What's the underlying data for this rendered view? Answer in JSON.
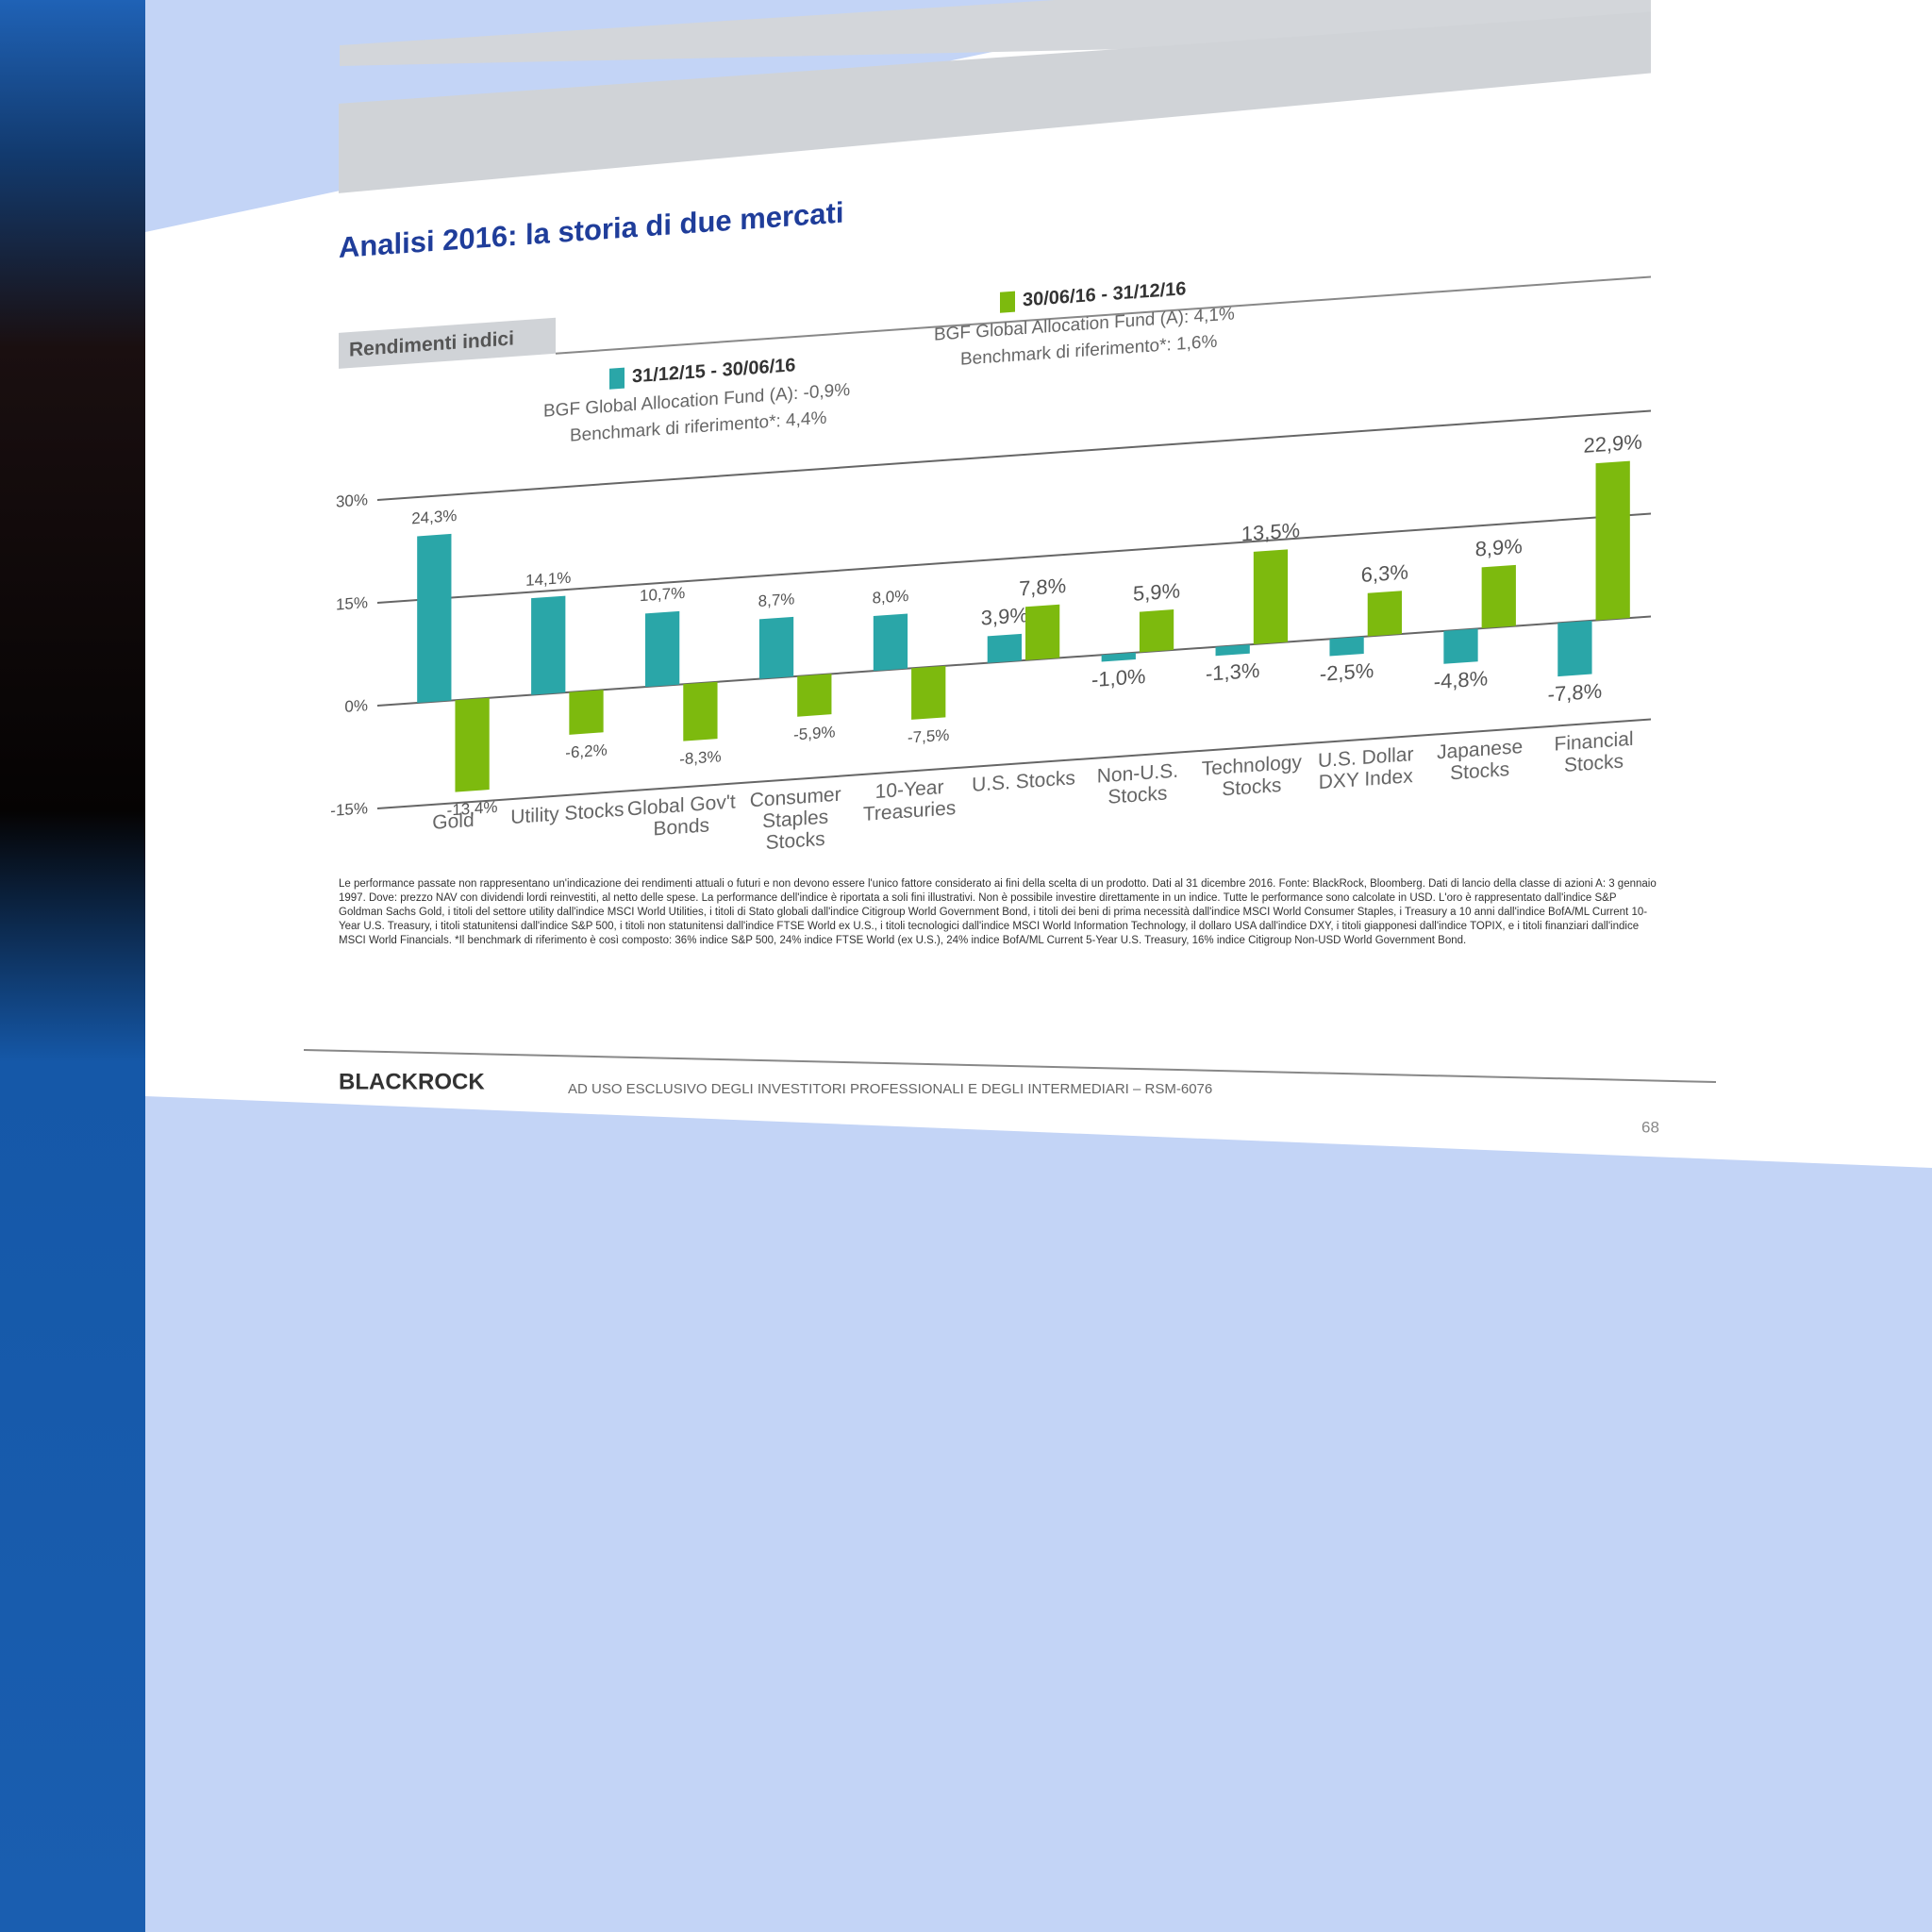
{
  "chart_data": {
    "type": "bar",
    "title": "Analisi 2016: la storia di due mercati",
    "subtitle": "Rendimenti indici",
    "annotations": [
      "BGF Global Allocation Fund (A): -0,9%",
      "Benchmark di riferimento*: 4,4%",
      "BGF Global Allocation Fund (A): 4,1%",
      "Benchmark di riferimento*: 1,6%"
    ],
    "categories": [
      "Gold",
      "Utility Stocks",
      "Global Gov't Bonds",
      "Consumer Staples Stocks",
      "10-Year Treasuries",
      "U.S. Stocks",
      "Non-U.S. Stocks",
      "Technology Stocks",
      "U.S. Dollar DXY Index",
      "Japanese Stocks",
      "Financial Stocks"
    ],
    "series": [
      {
        "name": "31/12/15 - 30/06/16",
        "color": "#2aa6a8",
        "values": [
          24.3,
          14.1,
          10.7,
          8.7,
          8.0,
          3.9,
          -1.0,
          -1.3,
          -2.5,
          -4.8,
          -7.8
        ],
        "value_labels": [
          "24,3%",
          "14,1%",
          "10,7%",
          "8,7%",
          "8,0%",
          "3,9%",
          "-1,0%",
          "-1,3%",
          "-2,5%",
          "-4,8%",
          "-7,8%"
        ]
      },
      {
        "name": "30/06/16 - 31/12/16",
        "color": "#7dba0e",
        "values": [
          -13.4,
          -6.2,
          -8.3,
          -5.9,
          -7.5,
          7.8,
          5.9,
          13.5,
          6.3,
          8.9,
          22.9
        ],
        "value_labels": [
          "-13,4%",
          "-6,2%",
          "-8,3%",
          "-5,9%",
          "-7,5%",
          "7,8%",
          "5,9%",
          "13,5%",
          "6,3%",
          "8,9%",
          "22,9%"
        ]
      }
    ],
    "ylim": [
      -15,
      30
    ],
    "yticks": [
      {
        "value": -15,
        "label": "-15%"
      },
      {
        "value": 0,
        "label": "0%"
      },
      {
        "value": 15,
        "label": "15%"
      },
      {
        "value": 30,
        "label": "30%"
      }
    ],
    "grid": true,
    "footnote": "Le performance passate non rappresentano un'indicazione dei rendimenti attuali o futuri e non devono essere l'unico fattore considerato ai fini della scelta di un prodotto. Dati al 31 dicembre 2016. Fonte: BlackRock, Bloomberg. Dati di lancio della classe di azioni A: 3 gennaio 1997. Dove: prezzo NAV con dividendi lordi reinvestiti, al netto delle spese. La performance dell'indice è riportata a soli fini illustrativi. Non è possibile investire direttamente in un indice. Tutte le performance sono calcolate in USD. L'oro è rappresentato dall'indice S&P Goldman Sachs Gold, i titoli del settore utility dall'indice MSCI World Utilities, i titoli di Stato globali dall'indice Citigroup World Government Bond, i titoli dei beni di prima necessità dall'indice MSCI World Consumer Staples, i Treasury a 10 anni dall'indice BofA/ML Current 10-Year U.S. Treasury, i titoli statunitensi dall'indice S&P 500, i titoli non statunitensi dall'indice FTSE World ex U.S., i titoli tecnologici dall'indice MSCI World Information Technology, il dollaro USA dall'indice DXY, i titoli giapponesi dall'indice TOPIX, e i titoli finanziari dall'indice MSCI World Financials. *Il benchmark di riferimento è così composto: 36% indice S&P 500, 24% indice FTSE World (ex U.S.), 24% indice BofA/ML Current 5-Year U.S. Treasury, 16% indice Citigroup Non-USD World Government Bond.",
    "brand": "BLACKROCK",
    "footer": "AD USO ESCLUSIVO DEGLI INVESTITORI PROFESSIONALI E DEGLI INTERMEDIARI – RSM-6076",
    "page": "68"
  }
}
